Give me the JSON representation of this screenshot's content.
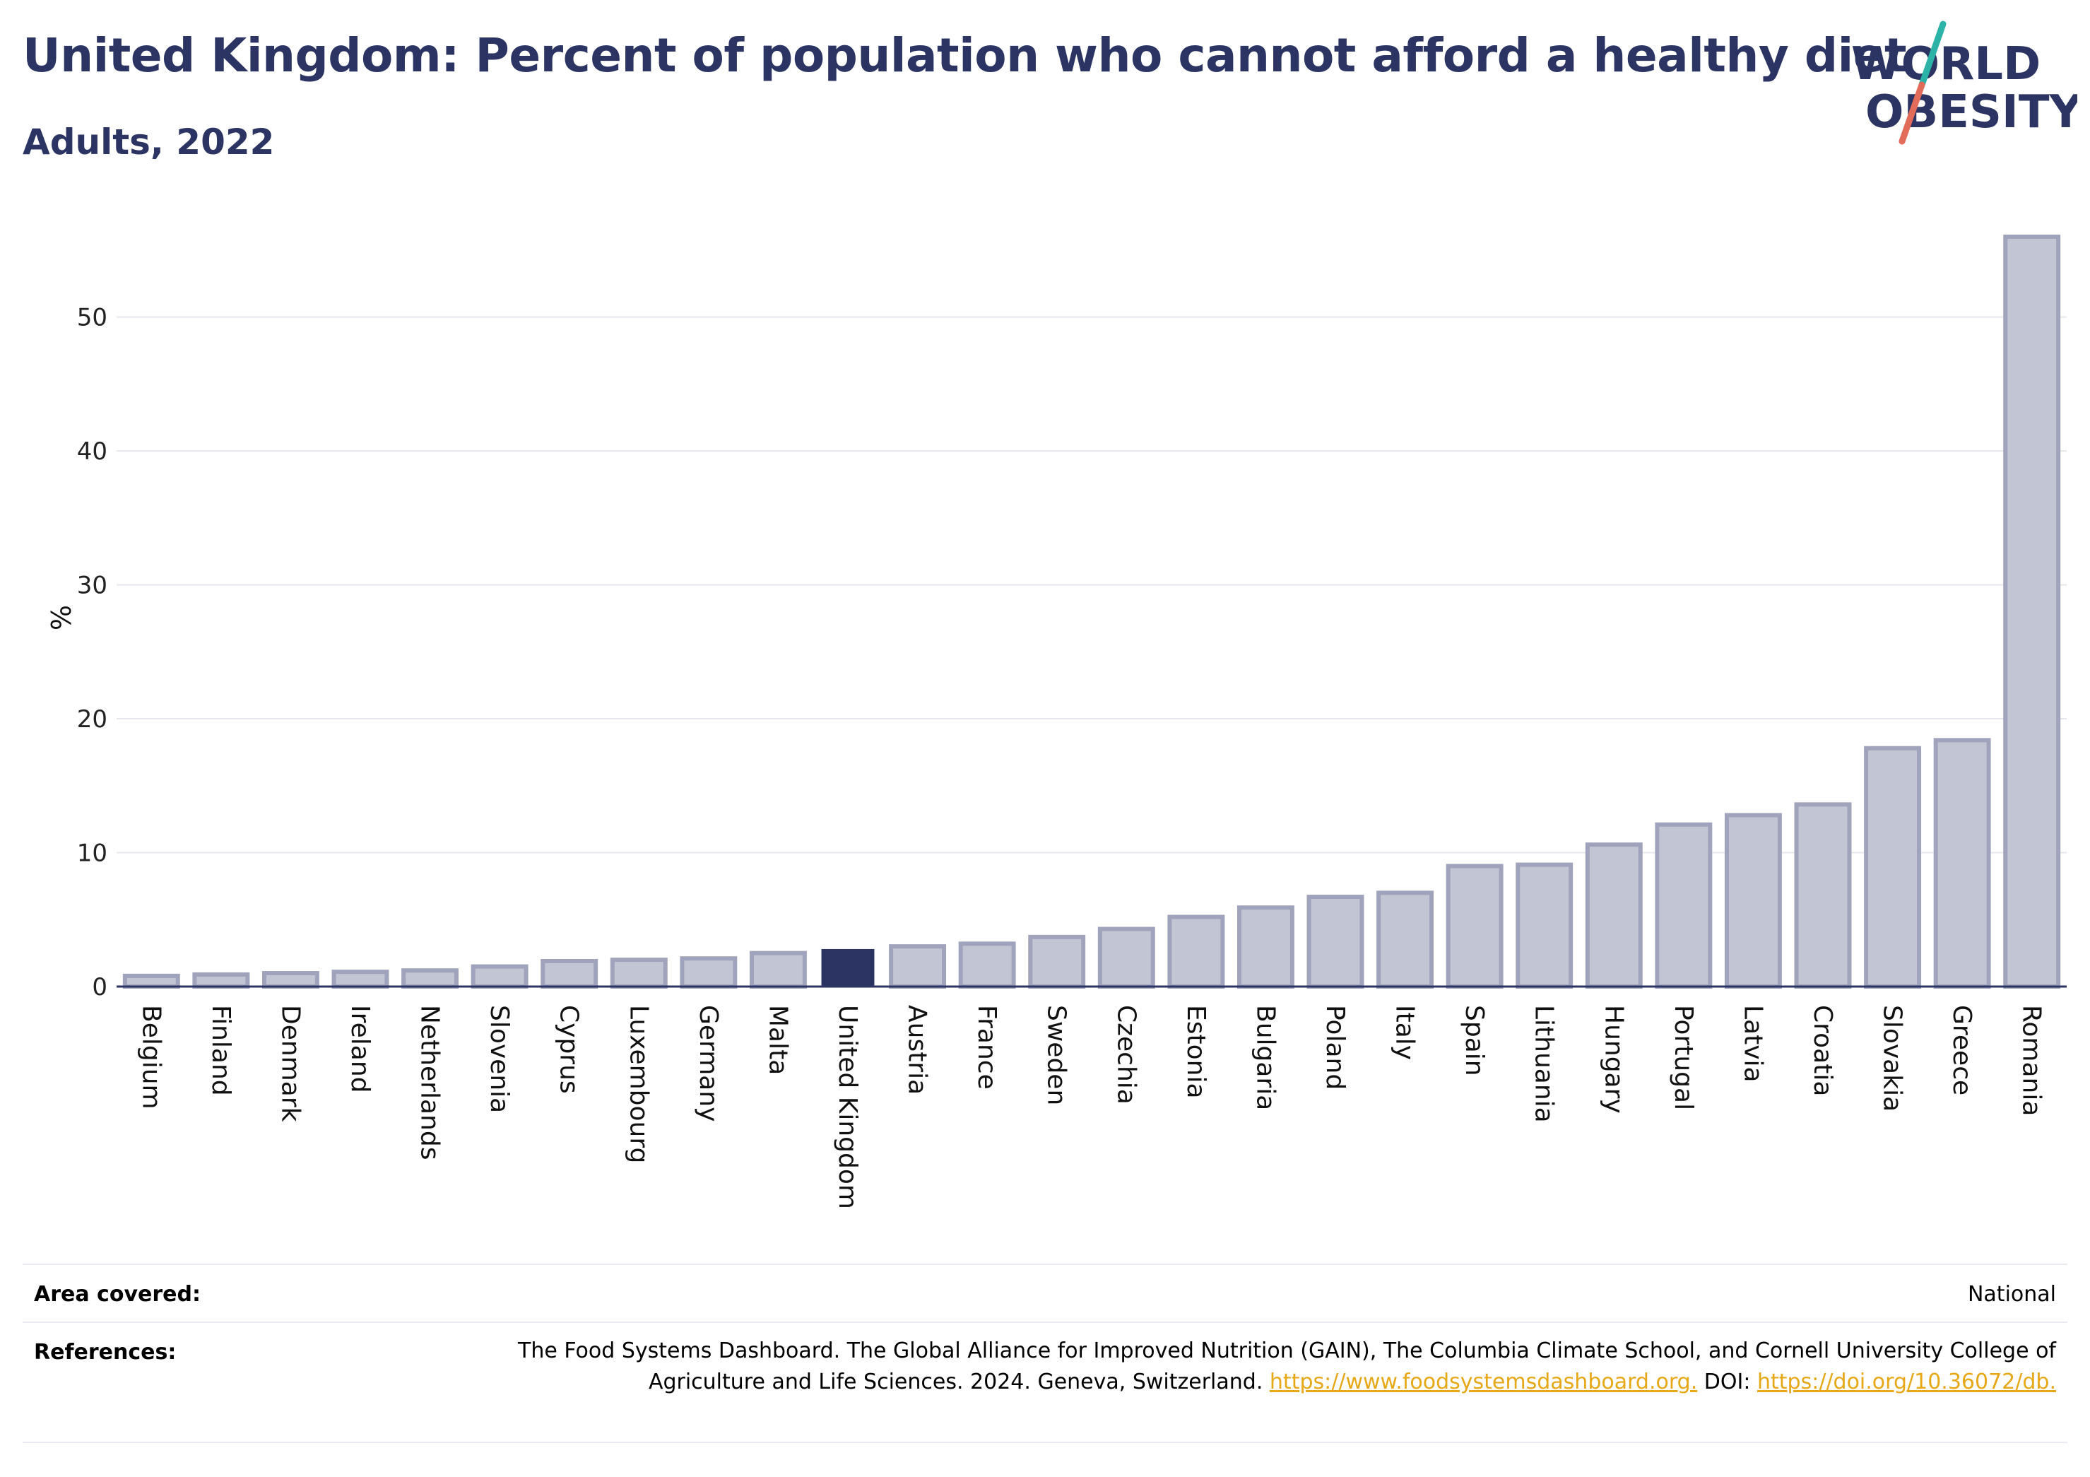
{
  "header": {
    "title": "United Kingdom: Percent of population who cannot afford a healthy diet",
    "subtitle": "Adults, 2022"
  },
  "logo": {
    "line1": "WORLD",
    "line2": "OBESITY",
    "colors": {
      "text": "#2b3462",
      "slash_top": "#2ab3a6",
      "slash_bottom": "#e26b5a"
    }
  },
  "chart_data": {
    "type": "bar",
    "title": "United Kingdom: Percent of population who cannot afford a healthy diet",
    "subtitle": "Adults, 2022",
    "ylabel": "%",
    "xlabel": "",
    "ylim": [
      0,
      57
    ],
    "yticks": [
      0,
      10,
      20,
      30,
      40,
      50
    ],
    "grid": true,
    "highlight": "United Kingdom",
    "colors": {
      "bar": "#c2c5d4",
      "bar_border": "#9fa3bb",
      "highlight": "#2b3462"
    },
    "categories": [
      "Belgium",
      "Finland",
      "Denmark",
      "Ireland",
      "Netherlands",
      "Slovenia",
      "Cyprus",
      "Luxembourg",
      "Germany",
      "Malta",
      "United Kingdom",
      "Austria",
      "France",
      "Sweden",
      "Czechia",
      "Estonia",
      "Bulgaria",
      "Poland",
      "Italy",
      "Spain",
      "Lithuania",
      "Hungary",
      "Portugal",
      "Latvia",
      "Croatia",
      "Slovakia",
      "Greece",
      "Romania"
    ],
    "values": [
      0.8,
      0.9,
      1.0,
      1.1,
      1.2,
      1.5,
      1.9,
      2.0,
      2.1,
      2.5,
      2.8,
      3.0,
      3.2,
      3.7,
      4.3,
      5.2,
      5.9,
      6.7,
      7.0,
      9.0,
      9.1,
      10.6,
      12.1,
      12.8,
      13.6,
      17.8,
      18.4,
      56.0
    ]
  },
  "meta": {
    "area_label": "Area covered:",
    "area_value": "National",
    "references_label": "References:",
    "references_text": "The Food Systems Dashboard. The Global Alliance for Improved Nutrition (GAIN), The Columbia Climate School, and Cornell University College of Agriculture and Life Sciences. 2024. Geneva, Switzerland.",
    "references_link1": "https://www.foodsystemsdashboard.org.",
    "references_doi_label": "DOI:",
    "references_link2": "https://doi.org/10.36072/db."
  }
}
